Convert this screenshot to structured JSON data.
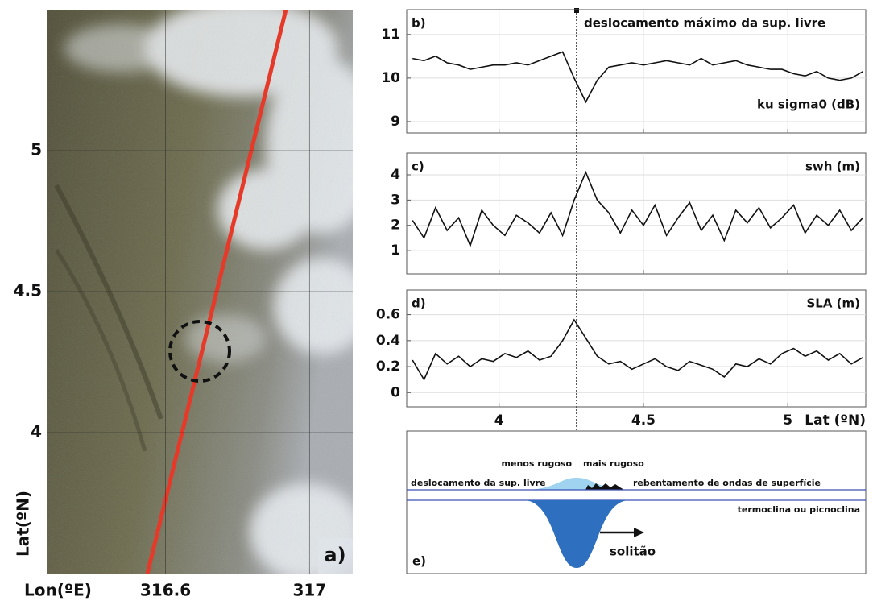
{
  "chart_data": [
    {
      "type": "image",
      "label": "a)",
      "xlabel": "Lon(ºE)",
      "ylabel": "Lat(ºN)",
      "xlim": [
        316.27,
        317.12
      ],
      "xticks": [
        316.6,
        317.0
      ],
      "ylim": [
        3.5,
        5.5
      ],
      "yticks": [
        4.0,
        4.5,
        5.0
      ],
      "grid": true
    },
    {
      "type": "line",
      "label": "b)",
      "annotation": "deslocamento máximo da sup. livre",
      "ylabel": "ku sigma0 (dB)",
      "color": "#111111",
      "grid": true,
      "show_xtick_labels": false,
      "xlim": [
        3.68,
        5.27
      ],
      "xticks": [
        4.0,
        4.5,
        5.0
      ],
      "ylim": [
        8.74,
        11.57
      ],
      "yticks": [
        9,
        10,
        11
      ],
      "x": [
        3.7,
        3.74,
        3.78,
        3.82,
        3.86,
        3.9,
        3.94,
        3.98,
        4.02,
        4.06,
        4.1,
        4.14,
        4.18,
        4.22,
        4.26,
        4.3,
        4.34,
        4.38,
        4.42,
        4.46,
        4.5,
        4.54,
        4.58,
        4.62,
        4.66,
        4.7,
        4.74,
        4.78,
        4.82,
        4.86,
        4.9,
        4.94,
        4.98,
        5.02,
        5.06,
        5.1,
        5.14,
        5.18,
        5.22,
        5.26
      ],
      "values": [
        10.45,
        10.4,
        10.5,
        10.35,
        10.3,
        10.2,
        10.25,
        10.3,
        10.3,
        10.35,
        10.3,
        10.4,
        10.5,
        10.6,
        10.0,
        9.45,
        9.95,
        10.25,
        10.3,
        10.35,
        10.3,
        10.35,
        10.4,
        10.35,
        10.3,
        10.45,
        10.3,
        10.35,
        10.4,
        10.3,
        10.25,
        10.2,
        10.2,
        10.1,
        10.05,
        10.15,
        10.0,
        9.95,
        10.0,
        10.15
      ]
    },
    {
      "type": "line",
      "label": "c)",
      "ylabel": "swh (m)",
      "color": "#111111",
      "grid": true,
      "show_xtick_labels": false,
      "xlim": [
        3.68,
        5.27
      ],
      "xticks": [
        4.0,
        4.5,
        5.0
      ],
      "ylim": [
        0.08,
        4.86
      ],
      "yticks": [
        1,
        2,
        3,
        4
      ],
      "x": [
        3.7,
        3.74,
        3.78,
        3.82,
        3.86,
        3.9,
        3.94,
        3.98,
        4.02,
        4.06,
        4.1,
        4.14,
        4.18,
        4.22,
        4.26,
        4.3,
        4.34,
        4.38,
        4.42,
        4.46,
        4.5,
        4.54,
        4.58,
        4.62,
        4.66,
        4.7,
        4.74,
        4.78,
        4.82,
        4.86,
        4.9,
        4.94,
        4.98,
        5.02,
        5.06,
        5.1,
        5.14,
        5.18,
        5.22,
        5.26
      ],
      "values": [
        2.2,
        1.5,
        2.7,
        1.8,
        2.3,
        1.2,
        2.6,
        2.0,
        1.6,
        2.4,
        2.1,
        1.7,
        2.5,
        1.6,
        3.0,
        4.1,
        3.0,
        2.5,
        1.7,
        2.6,
        2.0,
        2.8,
        1.6,
        2.3,
        2.9,
        1.8,
        2.4,
        1.4,
        2.6,
        2.1,
        2.7,
        1.9,
        2.3,
        2.8,
        1.7,
        2.4,
        2.0,
        2.6,
        1.8,
        2.3
      ]
    },
    {
      "type": "line",
      "label": "d)",
      "ylabel": "SLA (m)",
      "xlabel": "Lat (ºN)",
      "color": "#111111",
      "grid": true,
      "show_xtick_labels": true,
      "xlim": [
        3.68,
        5.27
      ],
      "xticks": [
        4.0,
        4.5,
        5.0
      ],
      "ylim": [
        -0.11,
        0.79
      ],
      "yticks": [
        0,
        0.2,
        0.4,
        0.6
      ],
      "x": [
        3.7,
        3.74,
        3.78,
        3.82,
        3.86,
        3.9,
        3.94,
        3.98,
        4.02,
        4.06,
        4.1,
        4.14,
        4.18,
        4.22,
        4.26,
        4.3,
        4.34,
        4.38,
        4.42,
        4.46,
        4.5,
        4.54,
        4.58,
        4.62,
        4.66,
        4.7,
        4.74,
        4.78,
        4.82,
        4.86,
        4.9,
        4.94,
        4.98,
        5.02,
        5.06,
        5.1,
        5.14,
        5.18,
        5.22,
        5.26
      ],
      "values": [
        0.25,
        0.1,
        0.3,
        0.22,
        0.28,
        0.2,
        0.26,
        0.24,
        0.3,
        0.27,
        0.32,
        0.25,
        0.28,
        0.4,
        0.56,
        0.42,
        0.28,
        0.22,
        0.24,
        0.18,
        0.22,
        0.26,
        0.2,
        0.17,
        0.24,
        0.21,
        0.18,
        0.12,
        0.22,
        0.2,
        0.26,
        0.22,
        0.3,
        0.34,
        0.28,
        0.32,
        0.25,
        0.3,
        0.22,
        0.27
      ]
    }
  ],
  "diagram": {
    "label": "e)",
    "less_rough": "menos rugoso",
    "more_rough": "mais rugoso",
    "surface_displacement": "deslocamento da sup. livre",
    "wave_breaking": "rebentamento de ondas de superfície",
    "thermocline": "termoclina ou picnoclina",
    "soliton": "solitão"
  }
}
